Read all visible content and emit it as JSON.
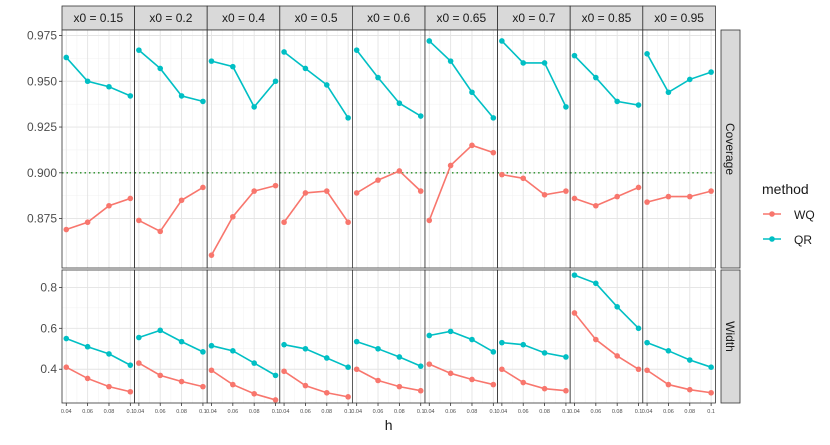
{
  "chart_data": {
    "type": "line",
    "x_label": "h",
    "x_ticks": [
      "0.04",
      "0.06",
      "0.08",
      "0.1"
    ],
    "x": [
      0.04,
      0.06,
      0.08,
      0.1
    ],
    "facet_columns": [
      "x0 = 0.15",
      "x0 = 0.2",
      "x0 = 0.4",
      "x0 = 0.5",
      "x0 = 0.6",
      "x0 = 0.65",
      "x0 = 0.7",
      "x0 = 0.85",
      "x0 = 0.95"
    ],
    "facet_rows": [
      "Coverage",
      "Width"
    ],
    "legend": {
      "title": "method",
      "position": "right",
      "items": [
        {
          "name": "WQ",
          "color": "#F8766D"
        },
        {
          "name": "QR",
          "color": "#00BFC4"
        }
      ]
    },
    "reference_line": {
      "row": "Coverage",
      "y": 0.9,
      "style": "dotted",
      "color": "#228B22"
    },
    "rows": [
      {
        "name": "Coverage",
        "ylim": [
          0.848,
          0.978
        ],
        "y_ticks": [
          0.875,
          0.9,
          0.925,
          0.95,
          0.975
        ],
        "y_tick_labels": [
          "0.875",
          "0.900",
          "0.925",
          "0.950",
          "0.975"
        ],
        "series": [
          {
            "name": "WQ",
            "panels": [
              [
                0.869,
                0.873,
                0.882,
                0.886
              ],
              [
                0.874,
                0.868,
                0.885,
                0.892
              ],
              [
                0.855,
                0.876,
                0.89,
                0.893
              ],
              [
                0.873,
                0.889,
                0.89,
                0.873
              ],
              [
                0.889,
                0.896,
                0.901,
                0.89
              ],
              [
                0.874,
                0.904,
                0.915,
                0.911
              ],
              [
                0.899,
                0.897,
                0.888,
                0.89
              ],
              [
                0.886,
                0.882,
                0.887,
                0.892
              ],
              [
                0.884,
                0.887,
                0.887,
                0.89
              ]
            ]
          },
          {
            "name": "QR",
            "panels": [
              [
                0.963,
                0.95,
                0.947,
                0.942
              ],
              [
                0.967,
                0.957,
                0.942,
                0.939
              ],
              [
                0.961,
                0.958,
                0.936,
                0.95
              ],
              [
                0.966,
                0.957,
                0.948,
                0.93
              ],
              [
                0.967,
                0.952,
                0.938,
                0.931
              ],
              [
                0.972,
                0.961,
                0.944,
                0.93
              ],
              [
                0.972,
                0.96,
                0.96,
                0.936
              ],
              [
                0.964,
                0.952,
                0.939,
                0.937
              ],
              [
                0.965,
                0.944,
                0.951,
                0.955
              ]
            ]
          }
        ]
      },
      {
        "name": "Width",
        "ylim": [
          0.235,
          0.885
        ],
        "y_ticks": [
          0.4,
          0.6,
          0.8
        ],
        "y_tick_labels": [
          "0.4",
          "0.6",
          "0.8"
        ],
        "series": [
          {
            "name": "WQ",
            "panels": [
              [
                0.41,
                0.355,
                0.315,
                0.29
              ],
              [
                0.43,
                0.37,
                0.34,
                0.315
              ],
              [
                0.395,
                0.325,
                0.28,
                0.25
              ],
              [
                0.39,
                0.32,
                0.285,
                0.265
              ],
              [
                0.4,
                0.345,
                0.315,
                0.295
              ],
              [
                0.425,
                0.38,
                0.35,
                0.325
              ],
              [
                0.4,
                0.335,
                0.305,
                0.295
              ],
              [
                0.675,
                0.545,
                0.465,
                0.4
              ],
              [
                0.395,
                0.325,
                0.3,
                0.285
              ]
            ]
          },
          {
            "name": "QR",
            "panels": [
              [
                0.55,
                0.51,
                0.475,
                0.42
              ],
              [
                0.555,
                0.59,
                0.535,
                0.485
              ],
              [
                0.515,
                0.49,
                0.43,
                0.37
              ],
              [
                0.52,
                0.5,
                0.455,
                0.41
              ],
              [
                0.535,
                0.5,
                0.46,
                0.415
              ],
              [
                0.565,
                0.585,
                0.545,
                0.485
              ],
              [
                0.53,
                0.52,
                0.48,
                0.46
              ],
              [
                0.86,
                0.82,
                0.705,
                0.6
              ],
              [
                0.53,
                0.49,
                0.445,
                0.41
              ]
            ]
          }
        ]
      }
    ]
  }
}
